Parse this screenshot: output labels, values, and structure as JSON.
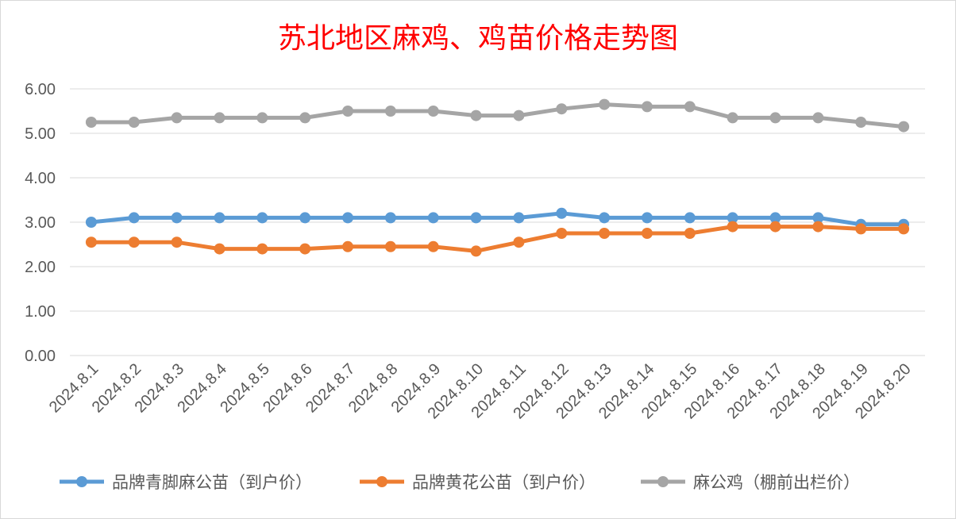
{
  "chart_data": {
    "type": "line",
    "title": "苏北地区麻鸡、鸡苗价格走势图",
    "title_color": "#ff0000",
    "categories": [
      "2024.8.1",
      "2024.8.2",
      "2024.8.3",
      "2024.8.4",
      "2024.8.5",
      "2024.8.6",
      "2024.8.7",
      "2024.8.8",
      "2024.8.9",
      "2024.8.10",
      "2024.8.11",
      "2024.8.12",
      "2024.8.13",
      "2024.8.14",
      "2024.8.15",
      "2024.8.16",
      "2024.8.17",
      "2024.8.18",
      "2024.8.19",
      "2024.8.20"
    ],
    "ylim": [
      0,
      6
    ],
    "yticks": [
      "0.00",
      "1.00",
      "2.00",
      "3.00",
      "4.00",
      "5.00",
      "6.00"
    ],
    "grid": true,
    "legend_position": "bottom",
    "series": [
      {
        "name": "品牌青脚麻公苗（到户价）",
        "color": "#5b9bd5",
        "values": [
          3.0,
          3.1,
          3.1,
          3.1,
          3.1,
          3.1,
          3.1,
          3.1,
          3.1,
          3.1,
          3.1,
          3.2,
          3.1,
          3.1,
          3.1,
          3.1,
          3.1,
          3.1,
          2.95,
          2.95
        ]
      },
      {
        "name": "品牌黄花公苗（到户价）",
        "color": "#ed7d31",
        "values": [
          2.55,
          2.55,
          2.55,
          2.4,
          2.4,
          2.4,
          2.45,
          2.45,
          2.45,
          2.35,
          2.55,
          2.75,
          2.75,
          2.75,
          2.75,
          2.9,
          2.9,
          2.9,
          2.85,
          2.85
        ]
      },
      {
        "name": "麻公鸡（棚前出栏价）",
        "color": "#a5a5a5",
        "values": [
          5.25,
          5.25,
          5.35,
          5.35,
          5.35,
          5.35,
          5.5,
          5.5,
          5.5,
          5.4,
          5.4,
          5.55,
          5.65,
          5.6,
          5.6,
          5.35,
          5.35,
          5.35,
          5.25,
          5.15
        ]
      }
    ]
  }
}
